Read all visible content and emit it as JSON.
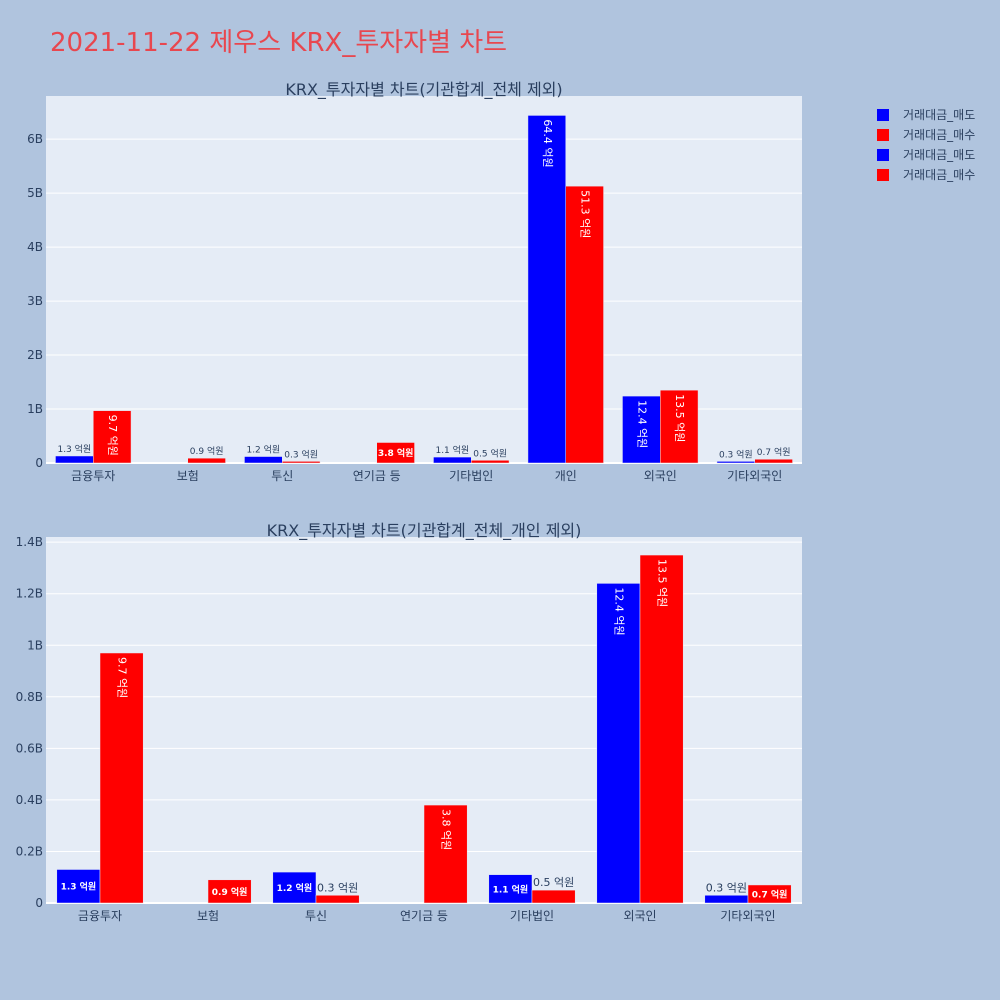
{
  "page_title": "2021-11-22 제우스 KRX_투자자별 차트",
  "colors": {
    "sell": "#0000ff",
    "buy": "#ff0000",
    "plot_bg": "#e5ecf6",
    "page_bg": "#b0c4de",
    "title": "#e8474f"
  },
  "legend": [
    {
      "name": "거래대금_매도",
      "color": "#0000ff"
    },
    {
      "name": "거래대금_매수",
      "color": "#ff0000"
    },
    {
      "name": "거래대금_매도",
      "color": "#0000ff"
    },
    {
      "name": "거래대금_매수",
      "color": "#ff0000"
    }
  ],
  "chart_data": [
    {
      "type": "bar",
      "title": "KRX_투자자별 차트(기관합계_전체 제외)",
      "categories": [
        "금융투자",
        "보험",
        "투신",
        "연기금 등",
        "기타법인",
        "개인",
        "외국인",
        "기타외국인"
      ],
      "ylim": [
        0,
        6.8
      ],
      "yticks": [
        0,
        1,
        2,
        3,
        4,
        5,
        6
      ],
      "ytick_labels": [
        "0",
        "1B",
        "2B",
        "3B",
        "4B",
        "5B",
        "6B"
      ],
      "grid": true,
      "series": [
        {
          "name": "거래대금_매도",
          "color": "#0000ff",
          "values": [
            0.13,
            0,
            0.12,
            0,
            0.11,
            6.44,
            1.24,
            0.03
          ],
          "labels": [
            "1.3 억원",
            "",
            "1.2 억원",
            "",
            "1.1 억원",
            "64.4 억원",
            "12.4 억원",
            "0.3 억원"
          ]
        },
        {
          "name": "거래대금_매수",
          "color": "#ff0000",
          "values": [
            0.97,
            0.09,
            0.03,
            0.38,
            0.05,
            5.13,
            1.35,
            0.07
          ],
          "labels": [
            "9.7 억원",
            "0.9 억원",
            "0.3 억원",
            "3.8 억원",
            "0.5 억원",
            "51.3 억원",
            "13.5 억원",
            "0.7 억원"
          ]
        }
      ]
    },
    {
      "type": "bar",
      "title": "KRX_투자자별 차트(기관합계_전체_개인 제외)",
      "categories": [
        "금융투자",
        "보험",
        "투신",
        "연기금 등",
        "기타법인",
        "외국인",
        "기타외국인"
      ],
      "ylim": [
        0,
        1.42
      ],
      "yticks": [
        0,
        0.2,
        0.4,
        0.6,
        0.8,
        1.0,
        1.2,
        1.4
      ],
      "ytick_labels": [
        "0",
        "0.2B",
        "0.4B",
        "0.6B",
        "0.8B",
        "1B",
        "1.2B",
        "1.4B"
      ],
      "grid": true,
      "series": [
        {
          "name": "거래대금_매도",
          "color": "#0000ff",
          "values": [
            0.13,
            0,
            0.12,
            0,
            0.11,
            1.24,
            0.03
          ],
          "labels": [
            "1.3 억원",
            "",
            "1.2 억원",
            "",
            "1.1 억원",
            "12.4 억원",
            "0.3 억원"
          ]
        },
        {
          "name": "거래대금_매수",
          "color": "#ff0000",
          "values": [
            0.97,
            0.09,
            0.03,
            0.38,
            0.05,
            1.35,
            0.07
          ],
          "labels": [
            "9.7 억원",
            "0.9 억원",
            "0.3 억원",
            "3.8 억원",
            "0.5 억원",
            "13.5 억원",
            "0.7 억원"
          ]
        }
      ]
    }
  ]
}
